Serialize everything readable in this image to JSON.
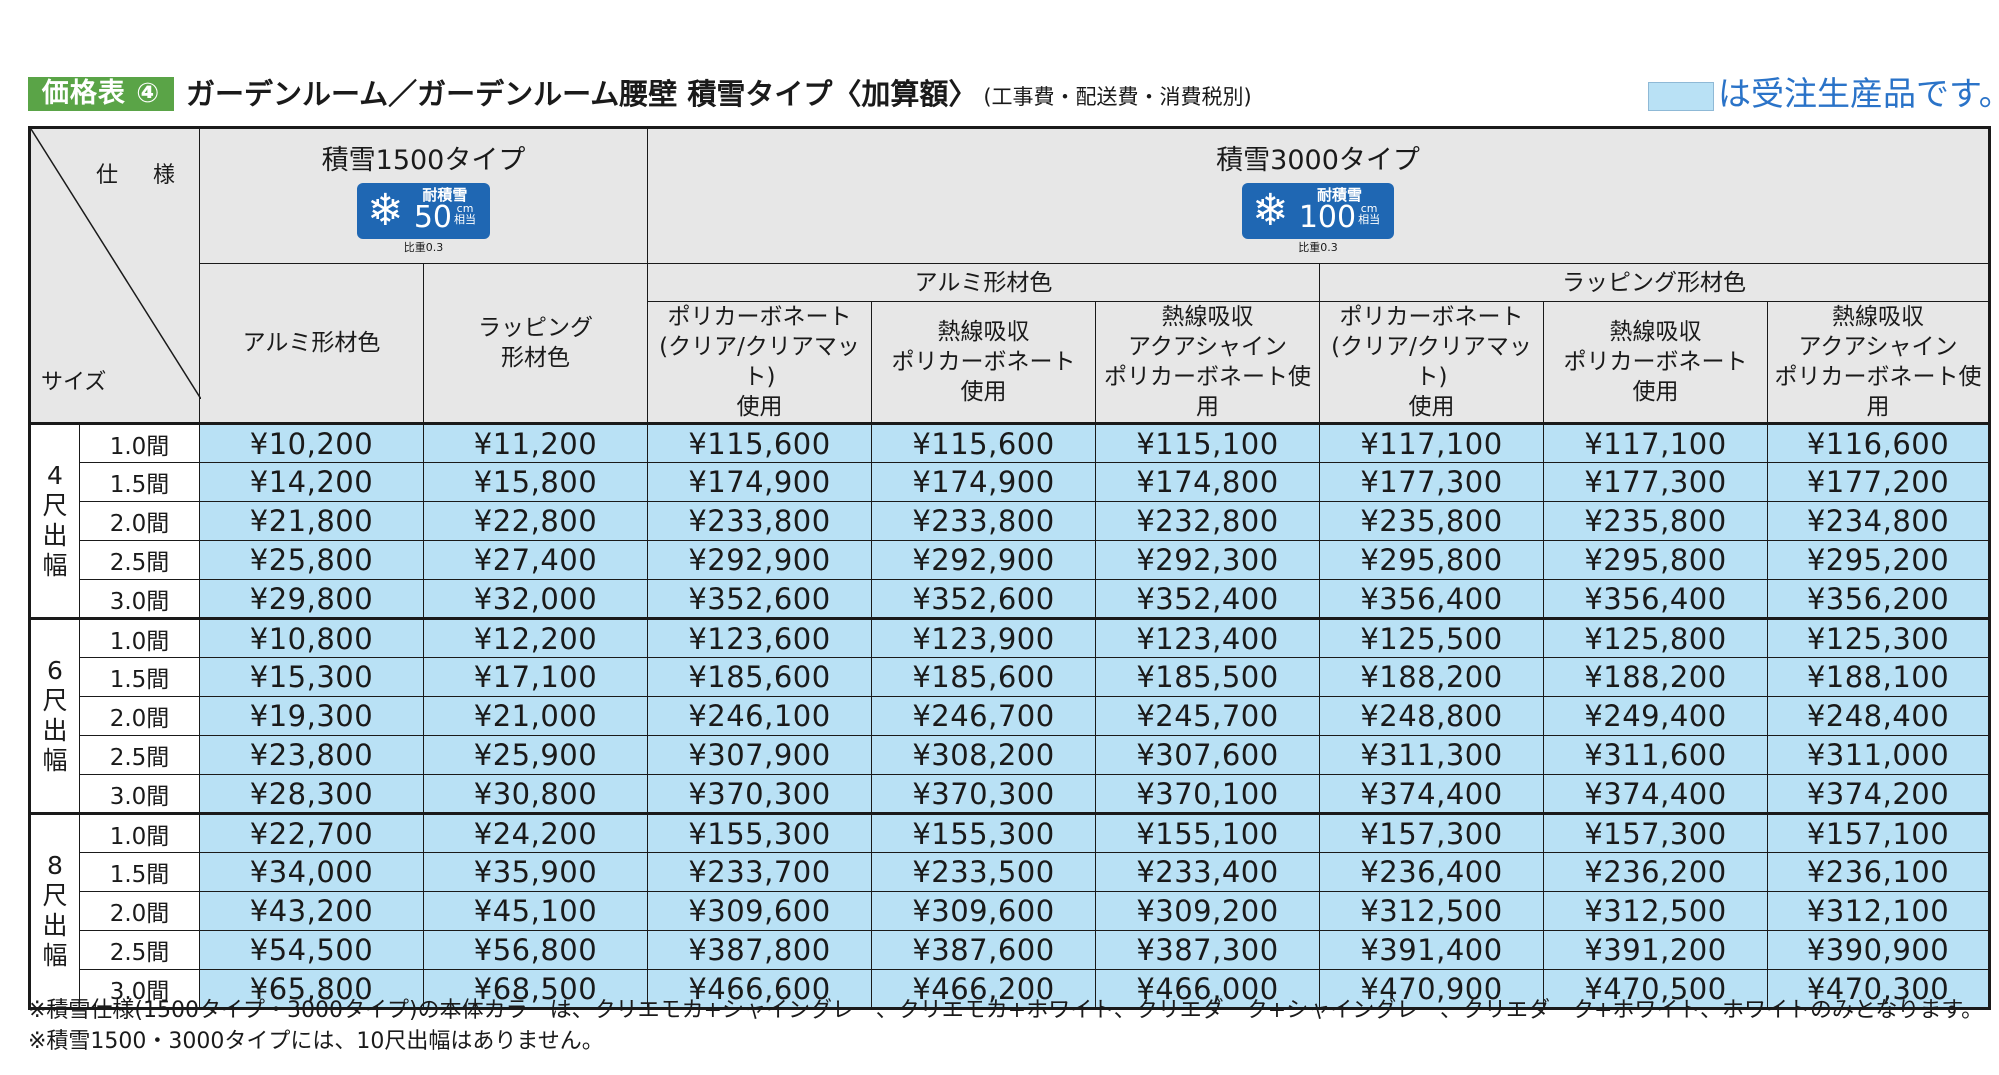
{
  "header": {
    "badge": "価格表 ④",
    "title": "ガーデンルーム／ガーデンルーム腰壁 積雪タイプ〈加算額〉",
    "note": "(工事費・配送費・消費税別)",
    "legend_text": "は受注生産品です。",
    "legend_color": "#b9e1f5"
  },
  "table": {
    "corner_spec": "仕 様",
    "corner_size": "サイズ",
    "type1": {
      "title": "積雪1500タイプ",
      "badge_label": "耐積雪",
      "badge_value": "50",
      "badge_unit": "cm",
      "badge_sub": "相当",
      "ratio": "比重0.3"
    },
    "type2": {
      "title": "積雪3000タイプ",
      "badge_label": "耐積雪",
      "badge_value": "100",
      "badge_unit": "cm",
      "badge_sub": "相当",
      "ratio": "比重0.3"
    },
    "sub1": "アルミ形材色",
    "sub2": "ラッピング形材色",
    "col_alumi": "アルミ形材色",
    "col_wrap": "ラッピング\n形材色",
    "col_poly": "ポリカーボネート\n(クリア/クリアマット)\n使用",
    "col_heat": "熱線吸収\nポリカーボネート\n使用",
    "col_aqua": "熱線吸収\nアクアシャイン\nポリカーボネート使用",
    "groups": [
      {
        "label": [
          "4",
          "尺",
          "出",
          "幅"
        ],
        "rows": [
          {
            "size": "1.0間",
            "prices": [
              "¥10,200",
              "¥11,200",
              "¥115,600",
              "¥115,600",
              "¥115,100",
              "¥117,100",
              "¥117,100",
              "¥116,600"
            ]
          },
          {
            "size": "1.5間",
            "prices": [
              "¥14,200",
              "¥15,800",
              "¥174,900",
              "¥174,900",
              "¥174,800",
              "¥177,300",
              "¥177,300",
              "¥177,200"
            ]
          },
          {
            "size": "2.0間",
            "prices": [
              "¥21,800",
              "¥22,800",
              "¥233,800",
              "¥233,800",
              "¥232,800",
              "¥235,800",
              "¥235,800",
              "¥234,800"
            ]
          },
          {
            "size": "2.5間",
            "prices": [
              "¥25,800",
              "¥27,400",
              "¥292,900",
              "¥292,900",
              "¥292,300",
              "¥295,800",
              "¥295,800",
              "¥295,200"
            ]
          },
          {
            "size": "3.0間",
            "prices": [
              "¥29,800",
              "¥32,000",
              "¥352,600",
              "¥352,600",
              "¥352,400",
              "¥356,400",
              "¥356,400",
              "¥356,200"
            ]
          }
        ]
      },
      {
        "label": [
          "6",
          "尺",
          "出",
          "幅"
        ],
        "rows": [
          {
            "size": "1.0間",
            "prices": [
              "¥10,800",
              "¥12,200",
              "¥123,600",
              "¥123,900",
              "¥123,400",
              "¥125,500",
              "¥125,800",
              "¥125,300"
            ]
          },
          {
            "size": "1.5間",
            "prices": [
              "¥15,300",
              "¥17,100",
              "¥185,600",
              "¥185,600",
              "¥185,500",
              "¥188,200",
              "¥188,200",
              "¥188,100"
            ]
          },
          {
            "size": "2.0間",
            "prices": [
              "¥19,300",
              "¥21,000",
              "¥246,100",
              "¥246,700",
              "¥245,700",
              "¥248,800",
              "¥249,400",
              "¥248,400"
            ]
          },
          {
            "size": "2.5間",
            "prices": [
              "¥23,800",
              "¥25,900",
              "¥307,900",
              "¥308,200",
              "¥307,600",
              "¥311,300",
              "¥311,600",
              "¥311,000"
            ]
          },
          {
            "size": "3.0間",
            "prices": [
              "¥28,300",
              "¥30,800",
              "¥370,300",
              "¥370,300",
              "¥370,100",
              "¥374,400",
              "¥374,400",
              "¥374,200"
            ]
          }
        ]
      },
      {
        "label": [
          "8",
          "尺",
          "出",
          "幅"
        ],
        "rows": [
          {
            "size": "1.0間",
            "prices": [
              "¥22,700",
              "¥24,200",
              "¥155,300",
              "¥155,300",
              "¥155,100",
              "¥157,300",
              "¥157,300",
              "¥157,100"
            ]
          },
          {
            "size": "1.5間",
            "prices": [
              "¥34,000",
              "¥35,900",
              "¥233,700",
              "¥233,500",
              "¥233,400",
              "¥236,400",
              "¥236,200",
              "¥236,100"
            ]
          },
          {
            "size": "2.0間",
            "prices": [
              "¥43,200",
              "¥45,100",
              "¥309,600",
              "¥309,600",
              "¥309,200",
              "¥312,500",
              "¥312,500",
              "¥312,100"
            ]
          },
          {
            "size": "2.5間",
            "prices": [
              "¥54,500",
              "¥56,800",
              "¥387,800",
              "¥387,600",
              "¥387,300",
              "¥391,400",
              "¥391,200",
              "¥390,900"
            ]
          },
          {
            "size": "3.0間",
            "prices": [
              "¥65,800",
              "¥68,500",
              "¥466,600",
              "¥466,200",
              "¥466,000",
              "¥470,900",
              "¥470,500",
              "¥470,300"
            ]
          }
        ]
      }
    ]
  },
  "footnotes": [
    "※積雪仕様(1500タイプ・3000タイプ)の本体カラーは、クリエモカ+シャイングレー、クリエモカ+ホワイト、クリエダーク+シャイングレー、クリエダーク+ホワイト、ホワイトのみとなります。",
    "※積雪1500・3000タイプには、10尺出幅はありません。"
  ]
}
